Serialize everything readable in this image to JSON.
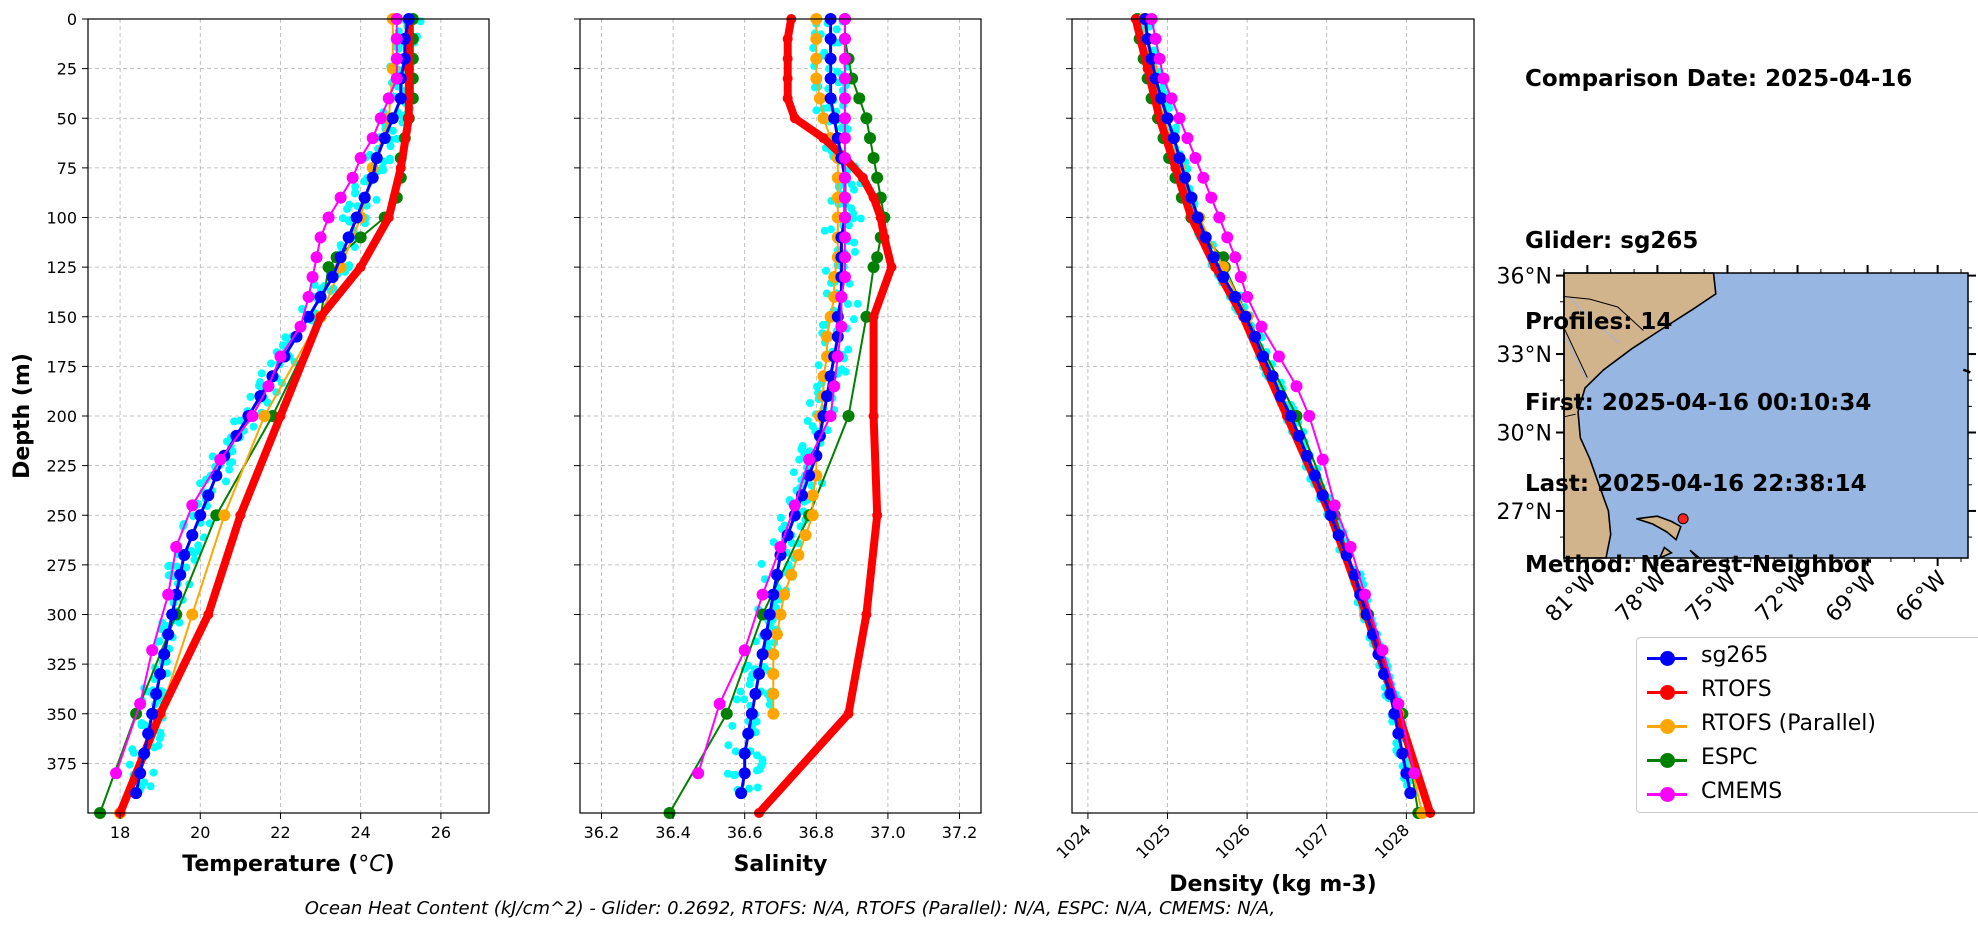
{
  "info": {
    "date": "Comparison Date: 2025-04-16",
    "glider": "Glider: sg265",
    "profiles": "Profiles: 14",
    "first": "First: 2025-04-16 00:10:34",
    "last": "Last: 2025-04-16 22:38:14",
    "method": "Method: Nearest-Neighbor"
  },
  "footer": "Ocean Heat Content (kJ/cm^2) - Glider: 0.2692,  RTOFS: N/A,  RTOFS (Parallel): N/A,  ESPC: N/A,  CMEMS: N/A,",
  "colors": {
    "sg265": "#0000ff",
    "RTOFS": "#ff0000",
    "RTOFS (Parallel)": "#ffa500",
    "ESPC": "#008000",
    "CMEMS": "#ff00ff",
    "glider_points": "#00ffff",
    "land": "#d2b48c",
    "ocean": "#97b6e1"
  },
  "legend": [
    {
      "name": "sg265",
      "color": "#0000ff"
    },
    {
      "name": "RTOFS",
      "color": "#ff0000"
    },
    {
      "name": "RTOFS (Parallel)",
      "color": "#ffa500"
    },
    {
      "name": "ESPC",
      "color": "#008000"
    },
    {
      "name": "CMEMS",
      "color": "#ff00ff"
    }
  ],
  "chart_data": [
    {
      "type": "line",
      "ylabel": "Depth (m)",
      "xlabel": "Temperature (°C)",
      "xlim": [
        17.2,
        27.2
      ],
      "ylim": [
        400,
        0
      ],
      "xticks": [
        "18",
        "20",
        "22",
        "24",
        "26"
      ],
      "yticks": [
        "0",
        "25",
        "50",
        "75",
        "100",
        "125",
        "150",
        "175",
        "200",
        "225",
        "250",
        "275",
        "300",
        "325",
        "350",
        "375"
      ],
      "grid": true,
      "series": [
        {
          "name": "sg265",
          "depths": [
            0,
            10,
            20,
            30,
            40,
            50,
            60,
            70,
            80,
            90,
            100,
            110,
            120,
            130,
            140,
            150,
            160,
            170,
            180,
            190,
            200,
            210,
            220,
            230,
            240,
            250,
            260,
            270,
            280,
            290,
            300,
            310,
            320,
            330,
            340,
            350,
            360,
            370,
            380,
            390
          ],
          "values": [
            25.2,
            25.1,
            25.1,
            25.0,
            25.0,
            24.8,
            24.6,
            24.4,
            24.3,
            24.1,
            23.9,
            23.7,
            23.5,
            23.3,
            23.0,
            22.7,
            22.4,
            22.1,
            21.8,
            21.5,
            21.2,
            20.9,
            20.6,
            20.4,
            20.2,
            20.0,
            19.8,
            19.6,
            19.5,
            19.4,
            19.3,
            19.2,
            19.1,
            19.0,
            18.9,
            18.8,
            18.7,
            18.6,
            18.5,
            18.4
          ]
        },
        {
          "name": "RTOFS",
          "depths": [
            0,
            25,
            50,
            75,
            100,
            125,
            150,
            200,
            250,
            300,
            350,
            400
          ],
          "values": [
            25.2,
            25.2,
            25.2,
            25.0,
            24.7,
            24.0,
            23.0,
            22.0,
            21.0,
            20.2,
            19.0,
            18.0
          ]
        },
        {
          "name": "RTOFS (Parallel)",
          "depths": [
            0,
            25,
            50,
            75,
            100,
            125,
            150,
            200,
            250,
            300,
            350,
            400
          ],
          "values": [
            24.8,
            24.8,
            24.7,
            24.3,
            24.0,
            23.5,
            23.0,
            21.6,
            20.6,
            19.8,
            19.0,
            18.0
          ]
        },
        {
          "name": "ESPC",
          "depths": [
            0,
            10,
            20,
            30,
            40,
            50,
            60,
            70,
            80,
            90,
            100,
            110,
            120,
            125,
            150,
            200,
            250,
            300,
            350,
            400
          ],
          "values": [
            25.3,
            25.3,
            25.3,
            25.3,
            25.3,
            25.2,
            25.1,
            25.0,
            25.0,
            24.9,
            24.6,
            24.0,
            23.4,
            23.2,
            23.0,
            21.8,
            20.4,
            19.4,
            18.4,
            17.5
          ]
        },
        {
          "name": "CMEMS",
          "depths": [
            0,
            10,
            20,
            30,
            40,
            50,
            60,
            70,
            80,
            90,
            100,
            110,
            120,
            130,
            140,
            155,
            170,
            185,
            200,
            222,
            245,
            266,
            290,
            318,
            345,
            380
          ],
          "values": [
            24.9,
            24.9,
            24.9,
            24.9,
            24.7,
            24.5,
            24.3,
            24.0,
            23.8,
            23.5,
            23.2,
            23.0,
            22.9,
            22.8,
            22.7,
            22.5,
            22.0,
            21.7,
            21.3,
            20.5,
            19.8,
            19.4,
            19.2,
            18.8,
            18.5,
            17.9
          ]
        }
      ]
    },
    {
      "type": "line",
      "xlabel": "Salinity",
      "xlim": [
        36.14,
        37.26
      ],
      "ylim": [
        400,
        0
      ],
      "xticks": [
        "36.2",
        "36.4",
        "36.6",
        "36.8",
        "37.0",
        "37.2"
      ],
      "grid": true,
      "series": [
        {
          "name": "sg265",
          "depths": [
            0,
            10,
            20,
            30,
            40,
            50,
            60,
            70,
            80,
            90,
            100,
            110,
            120,
            130,
            140,
            150,
            160,
            170,
            180,
            190,
            200,
            210,
            220,
            230,
            240,
            250,
            260,
            270,
            280,
            290,
            300,
            310,
            320,
            330,
            340,
            350,
            360,
            370,
            380,
            390
          ],
          "values": [
            36.84,
            36.84,
            36.84,
            36.84,
            36.84,
            36.85,
            36.86,
            36.87,
            36.88,
            36.88,
            36.88,
            36.87,
            36.87,
            36.87,
            36.87,
            36.86,
            36.86,
            36.85,
            36.84,
            36.83,
            36.82,
            36.81,
            36.8,
            36.78,
            36.76,
            36.74,
            36.72,
            36.7,
            36.69,
            36.68,
            36.67,
            36.66,
            36.65,
            36.64,
            36.63,
            36.62,
            36.61,
            36.6,
            36.6,
            36.59
          ]
        },
        {
          "name": "RTOFS",
          "depths": [
            0,
            10,
            20,
            30,
            40,
            50,
            60,
            70,
            80,
            90,
            100,
            110,
            125,
            150,
            200,
            250,
            300,
            350,
            400
          ],
          "values": [
            36.73,
            36.72,
            36.72,
            36.72,
            36.72,
            36.74,
            36.82,
            36.88,
            36.93,
            36.96,
            36.98,
            36.99,
            37.01,
            36.96,
            36.96,
            36.97,
            36.94,
            36.89,
            36.64
          ]
        },
        {
          "name": "RTOFS (Parallel)",
          "depths": [
            0,
            10,
            20,
            30,
            40,
            50,
            60,
            70,
            80,
            90,
            100,
            110,
            120,
            130,
            140,
            150,
            160,
            170,
            180,
            190,
            200,
            210,
            220,
            230,
            240,
            250,
            260,
            270,
            280,
            290,
            300,
            310,
            320,
            330,
            340,
            350
          ],
          "values": [
            36.8,
            36.8,
            36.8,
            36.8,
            36.81,
            36.82,
            36.84,
            36.86,
            36.86,
            36.86,
            36.86,
            36.86,
            36.86,
            36.85,
            36.85,
            36.84,
            36.83,
            36.83,
            36.82,
            36.82,
            36.81,
            36.81,
            36.8,
            36.8,
            36.79,
            36.79,
            36.77,
            36.75,
            36.73,
            36.71,
            36.7,
            36.69,
            36.68,
            36.68,
            36.68,
            36.68
          ]
        },
        {
          "name": "ESPC",
          "depths": [
            0,
            10,
            20,
            30,
            40,
            50,
            60,
            70,
            80,
            90,
            100,
            110,
            120,
            125,
            150,
            200,
            250,
            300,
            350,
            400
          ],
          "values": [
            36.88,
            36.88,
            36.89,
            36.9,
            36.92,
            36.94,
            36.95,
            36.96,
            36.97,
            36.98,
            36.99,
            36.98,
            36.97,
            36.96,
            36.94,
            36.89,
            36.78,
            36.65,
            36.55,
            36.39
          ]
        },
        {
          "name": "CMEMS",
          "depths": [
            0,
            10,
            20,
            30,
            40,
            50,
            60,
            70,
            80,
            90,
            100,
            110,
            120,
            130,
            140,
            155,
            170,
            185,
            200,
            222,
            245,
            266,
            290,
            318,
            345,
            380
          ],
          "values": [
            36.88,
            36.88,
            36.88,
            36.88,
            36.88,
            36.88,
            36.88,
            36.88,
            36.88,
            36.88,
            36.88,
            36.88,
            36.88,
            36.88,
            36.87,
            36.87,
            36.86,
            36.85,
            36.84,
            36.78,
            36.74,
            36.7,
            36.65,
            36.6,
            36.53,
            36.47
          ]
        }
      ]
    },
    {
      "type": "line",
      "xlabel": "Density (kg m-3)",
      "xlim": [
        1023.8,
        1028.85
      ],
      "ylim": [
        400,
        0
      ],
      "xticks": [
        "1024",
        "1025",
        "1026",
        "1027",
        "1028"
      ],
      "grid": true,
      "series": [
        {
          "name": "sg265",
          "depths": [
            0,
            10,
            20,
            30,
            40,
            50,
            60,
            70,
            80,
            90,
            100,
            110,
            120,
            130,
            140,
            150,
            160,
            170,
            180,
            190,
            200,
            210,
            220,
            230,
            240,
            250,
            260,
            270,
            280,
            290,
            300,
            310,
            320,
            330,
            340,
            350,
            360,
            370,
            380,
            390
          ],
          "values": [
            1024.72,
            1024.75,
            1024.8,
            1024.85,
            1024.92,
            1025.0,
            1025.08,
            1025.15,
            1025.22,
            1025.3,
            1025.38,
            1025.48,
            1025.58,
            1025.7,
            1025.85,
            1025.98,
            1026.1,
            1026.2,
            1026.32,
            1026.42,
            1026.55,
            1026.65,
            1026.75,
            1026.85,
            1026.95,
            1027.05,
            1027.15,
            1027.25,
            1027.35,
            1027.42,
            1027.5,
            1027.58,
            1027.65,
            1027.72,
            1027.8,
            1027.85,
            1027.9,
            1027.95,
            1028.0,
            1028.05
          ]
        },
        {
          "name": "RTOFS",
          "depths": [
            0,
            25,
            50,
            75,
            100,
            125,
            150,
            200,
            250,
            300,
            350,
            400
          ],
          "values": [
            1024.6,
            1024.75,
            1024.9,
            1025.1,
            1025.3,
            1025.6,
            1025.95,
            1026.5,
            1027.05,
            1027.5,
            1027.9,
            1028.3
          ]
        },
        {
          "name": "RTOFS (Parallel)",
          "depths": [
            0,
            25,
            50,
            75,
            100,
            125,
            150,
            200,
            250,
            300,
            350,
            400
          ],
          "values": [
            1024.7,
            1024.8,
            1024.95,
            1025.15,
            1025.4,
            1025.7,
            1026.0,
            1026.55,
            1027.05,
            1027.48,
            1027.9,
            1028.2
          ]
        },
        {
          "name": "ESPC",
          "depths": [
            0,
            10,
            20,
            30,
            40,
            50,
            60,
            70,
            80,
            90,
            100,
            110,
            120,
            125,
            150,
            200,
            250,
            300,
            350,
            400
          ],
          "values": [
            1024.62,
            1024.65,
            1024.7,
            1024.75,
            1024.8,
            1024.88,
            1024.95,
            1025.02,
            1025.1,
            1025.18,
            1025.3,
            1025.45,
            1025.7,
            1025.72,
            1026.0,
            1026.62,
            1027.1,
            1027.52,
            1027.95,
            1028.15
          ]
        },
        {
          "name": "CMEMS",
          "depths": [
            0,
            10,
            20,
            30,
            40,
            50,
            60,
            70,
            80,
            90,
            100,
            110,
            120,
            130,
            140,
            155,
            170,
            185,
            200,
            222,
            245,
            266,
            290,
            318,
            345,
            380
          ],
          "values": [
            1024.8,
            1024.85,
            1024.9,
            1024.95,
            1025.05,
            1025.15,
            1025.25,
            1025.35,
            1025.45,
            1025.55,
            1025.65,
            1025.75,
            1025.85,
            1025.92,
            1026.0,
            1026.18,
            1026.4,
            1026.62,
            1026.78,
            1026.95,
            1027.1,
            1027.3,
            1027.48,
            1027.7,
            1027.9,
            1028.1
          ]
        }
      ]
    },
    {
      "type": "map",
      "yticks": [
        "36°N",
        "33°N",
        "30°N",
        "27°N"
      ],
      "xticks": [
        "81°W",
        "78°W",
        "75°W",
        "72°W",
        "69°W",
        "66°W"
      ],
      "glider_position": {
        "lon": -76.9,
        "lat": 26.7
      }
    }
  ]
}
